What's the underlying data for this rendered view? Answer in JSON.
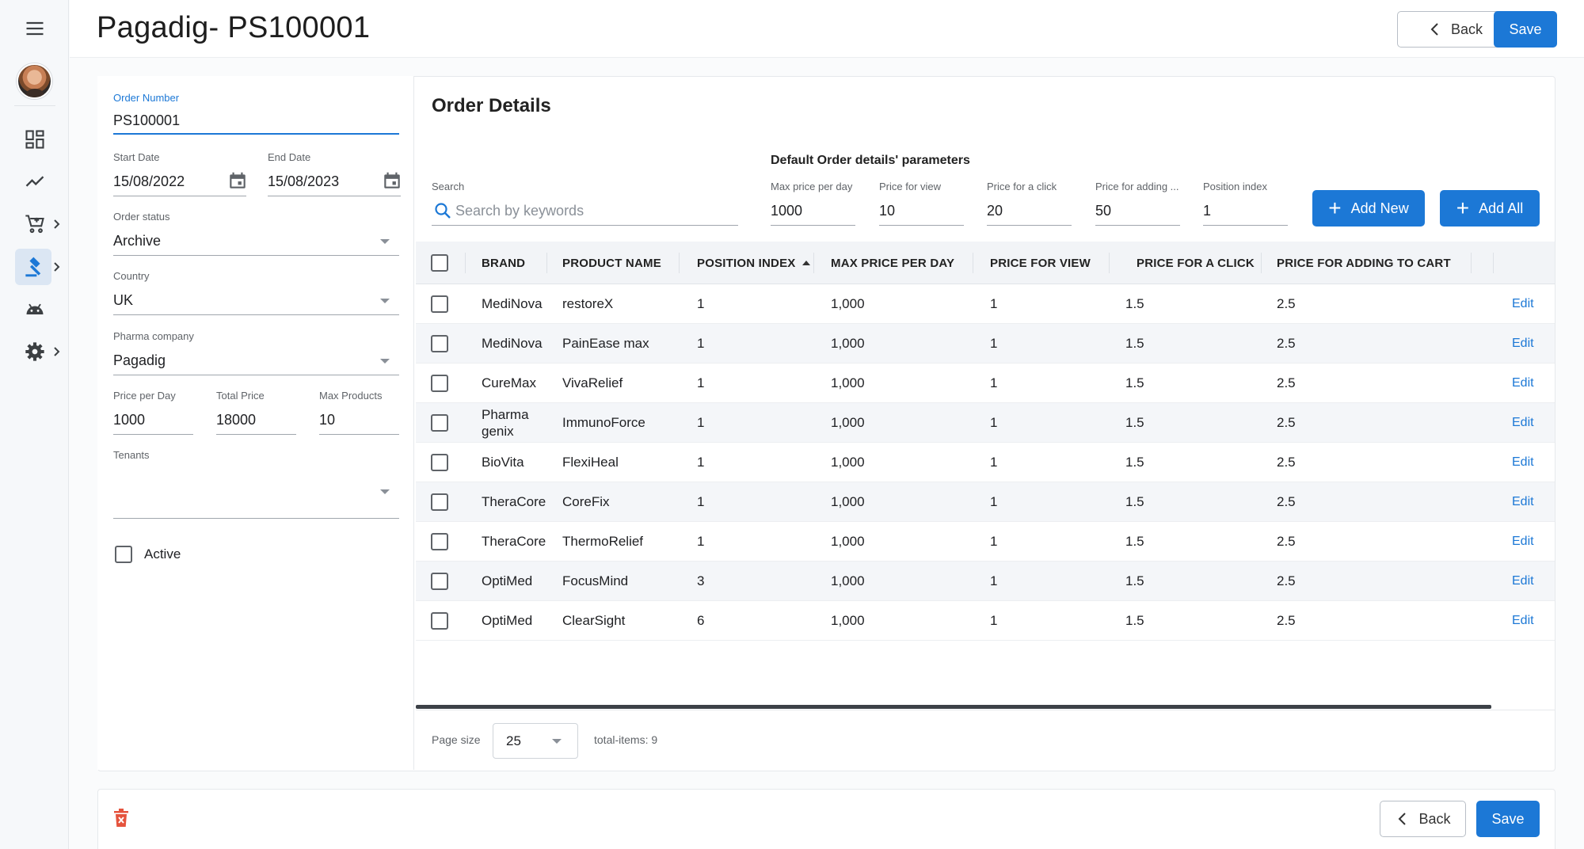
{
  "header": {
    "title": "Pagadig- PS100001",
    "back_label": "Back",
    "save_label": "Save"
  },
  "sidebar": {
    "items": [
      {
        "icon": "menu-icon"
      },
      {
        "icon": "avatar"
      },
      {
        "icon": "dashboard-icon"
      },
      {
        "icon": "analytics-icon"
      },
      {
        "icon": "cart-icon"
      },
      {
        "icon": "auction-icon",
        "active": true
      },
      {
        "icon": "android-icon"
      },
      {
        "icon": "settings-icon"
      }
    ]
  },
  "form": {
    "order_number": {
      "label": "Order Number",
      "value": "PS100001"
    },
    "start_date": {
      "label": "Start Date",
      "value": "15/08/2022"
    },
    "end_date": {
      "label": "End Date",
      "value": "15/08/2023"
    },
    "order_status": {
      "label": "Order status",
      "value": "Archive"
    },
    "country": {
      "label": "Country",
      "value": "UK"
    },
    "pharma_company": {
      "label": "Pharma company",
      "value": "Pagadig"
    },
    "price_per_day": {
      "label": "Price per Day",
      "value": "1000"
    },
    "total_price": {
      "label": "Total Price",
      "value": "18000"
    },
    "max_products": {
      "label": "Max Products",
      "value": "10"
    },
    "tenants": {
      "label": "Tenants",
      "value": ""
    },
    "active": {
      "label": "Active",
      "checked": false
    }
  },
  "order_details": {
    "title": "Order Details",
    "params_title": "Default Order details' parameters",
    "search": {
      "label": "Search",
      "placeholder": "Search by keywords"
    },
    "params": {
      "max_price_per_day": {
        "label": "Max price per day",
        "value": "1000"
      },
      "price_for_view": {
        "label": "Price for view",
        "value": "10"
      },
      "price_for_click": {
        "label": "Price for a click",
        "value": "20"
      },
      "price_for_adding": {
        "label": "Price for adding ...",
        "value": "50"
      },
      "position_index": {
        "label": "Position index",
        "value": "1"
      }
    },
    "add_new_label": "Add New",
    "add_all_label": "Add All"
  },
  "table": {
    "columns": [
      "BRAND",
      "PRODUCT NAME",
      "POSITION INDEX",
      "MAX PRICE PER DAY",
      "PRICE FOR VIEW",
      "PRICE FOR A CLICK",
      "PRICE FOR ADDING TO CART"
    ],
    "sort_column": "POSITION INDEX",
    "edit_label": "Edit",
    "rows": [
      {
        "brand": "MediNova",
        "product": "restoreX",
        "position": "1",
        "max_price": "1,000",
        "view": "1",
        "click": "1.5",
        "cart": "2.5"
      },
      {
        "brand": "MediNova",
        "product": "PainEase max",
        "position": "1",
        "max_price": "1,000",
        "view": "1",
        "click": "1.5",
        "cart": "2.5"
      },
      {
        "brand": "CureMax",
        "product": "VivaRelief",
        "position": "1",
        "max_price": "1,000",
        "view": "1",
        "click": "1.5",
        "cart": "2.5"
      },
      {
        "brand": "Pharma genix",
        "product": "ImmunoForce",
        "position": "1",
        "max_price": "1,000",
        "view": "1",
        "click": "1.5",
        "cart": "2.5"
      },
      {
        "brand": "BioVita",
        "product": "FlexiHeal",
        "position": "1",
        "max_price": "1,000",
        "view": "1",
        "click": "1.5",
        "cart": "2.5"
      },
      {
        "brand": "TheraCore",
        "product": "CoreFix",
        "position": "1",
        "max_price": "1,000",
        "view": "1",
        "click": "1.5",
        "cart": "2.5"
      },
      {
        "brand": "TheraCore",
        "product": "ThermoRelief",
        "position": "1",
        "max_price": "1,000",
        "view": "1",
        "click": "1.5",
        "cart": "2.5"
      },
      {
        "brand": "OptiMed",
        "product": "FocusMind",
        "position": "3",
        "max_price": "1,000",
        "view": "1",
        "click": "1.5",
        "cart": "2.5"
      },
      {
        "brand": "OptiMed",
        "product": "ClearSight",
        "position": "6",
        "max_price": "1,000",
        "view": "1",
        "click": "1.5",
        "cart": "2.5"
      }
    ]
  },
  "pagination": {
    "page_size_label": "Page size",
    "page_size": "25",
    "total_items": "total-items: 9"
  },
  "colors": {
    "primary": "#1c78d6",
    "delete": "#e5533d"
  }
}
